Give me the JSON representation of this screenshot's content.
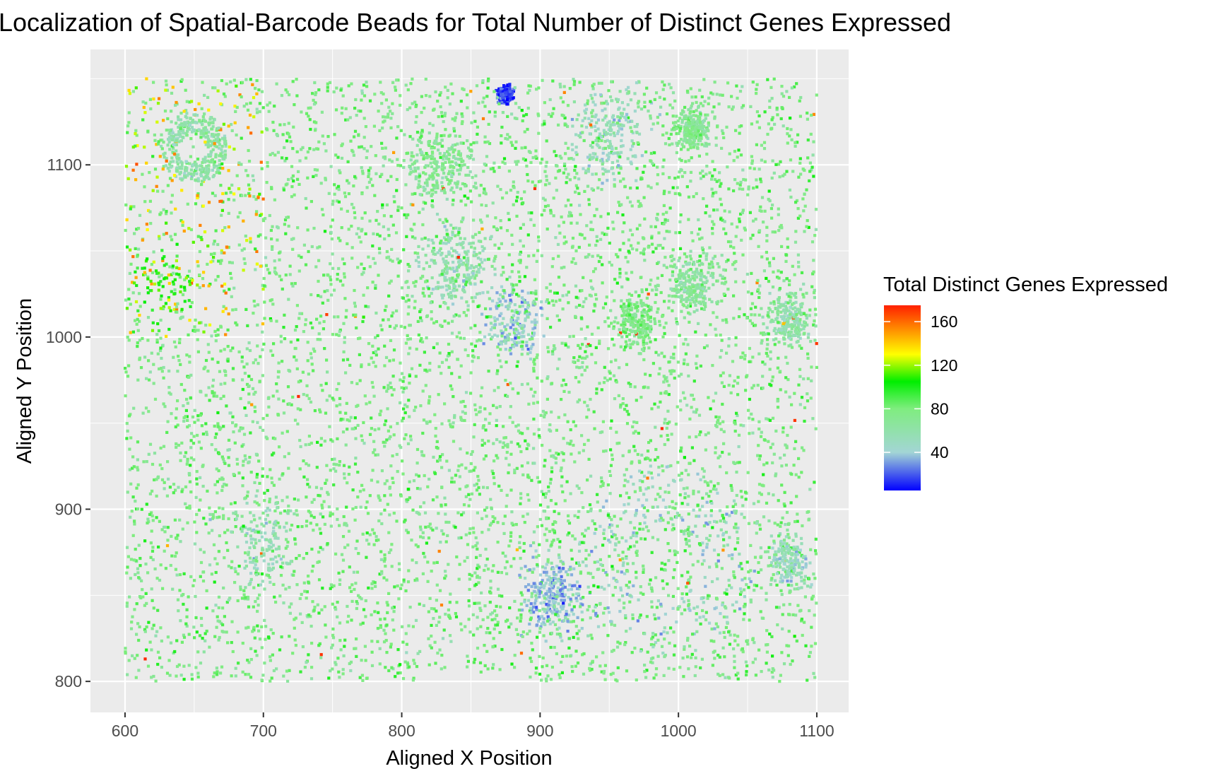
{
  "chart_data": {
    "type": "scatter",
    "title": "Localization of Spatial-Barcode Beads for Total Number of Distinct Genes Expressed",
    "xlabel": "Aligned X Position",
    "ylabel": "Aligned Y Position",
    "xlim": [
      575,
      1123
    ],
    "ylim": [
      782,
      1167
    ],
    "x_ticks": [
      600,
      700,
      800,
      900,
      1000,
      1100
    ],
    "x_tick_labels": [
      "600",
      "700",
      "800",
      "900",
      "1000",
      "1100"
    ],
    "y_ticks": [
      800,
      900,
      1000,
      1100
    ],
    "y_tick_labels": [
      "800",
      "900",
      "1000",
      "1100"
    ],
    "grid": true,
    "background": "#ebebeb",
    "legend": {
      "title": "Total Distinct Genes Expressed",
      "placement": "right",
      "ticks": [
        40,
        80,
        120,
        160
      ],
      "tick_labels": [
        "40",
        "80",
        "120",
        "160"
      ],
      "range": [
        5,
        175
      ],
      "gradient": [
        {
          "value": 5,
          "color": "#0000ff"
        },
        {
          "value": 40,
          "color": "#a3d5d5"
        },
        {
          "value": 80,
          "color": "#7fed7f"
        },
        {
          "value": 105,
          "color": "#00ee00"
        },
        {
          "value": 130,
          "color": "#ffff00"
        },
        {
          "value": 175,
          "color": "#ff2000"
        }
      ]
    },
    "x_range_points": [
      600,
      1100
    ],
    "y_range_points": [
      800,
      1150
    ],
    "n_points": 9000,
    "regions": [
      {
        "x": 650,
        "y": 1110,
        "r": 22,
        "value": 60,
        "density": 3.5,
        "ring": true
      },
      {
        "x": 875,
        "y": 1141,
        "r": 8,
        "value": 15,
        "density": 3
      },
      {
        "x": 830,
        "y": 1100,
        "r": 40,
        "value": 70,
        "density": 2.2
      },
      {
        "x": 840,
        "y": 1040,
        "r": 40,
        "value": 55,
        "density": 2.2
      },
      {
        "x": 880,
        "y": 1010,
        "r": 35,
        "value": 40,
        "density": 2
      },
      {
        "x": 950,
        "y": 1120,
        "r": 45,
        "value": 50,
        "density": 2
      },
      {
        "x": 1010,
        "y": 1120,
        "r": 20,
        "value": 70,
        "density": 2.5
      },
      {
        "x": 970,
        "y": 1010,
        "r": 25,
        "value": 75,
        "density": 2.4
      },
      {
        "x": 1010,
        "y": 1030,
        "r": 30,
        "value": 65,
        "density": 2.4
      },
      {
        "x": 1080,
        "y": 1010,
        "r": 25,
        "value": 60,
        "density": 2.4
      },
      {
        "x": 910,
        "y": 850,
        "r": 35,
        "value": 35,
        "density": 2.8
      },
      {
        "x": 990,
        "y": 870,
        "r": 60,
        "value": 45,
        "density": 2.6,
        "ring": true
      },
      {
        "x": 1080,
        "y": 870,
        "r": 25,
        "value": 50,
        "density": 2.2
      },
      {
        "x": 700,
        "y": 880,
        "r": 40,
        "value": 55,
        "density": 1.4
      },
      {
        "x": 630,
        "y": 1030,
        "r": 40,
        "value": 105,
        "density": 0.7
      }
    ]
  }
}
